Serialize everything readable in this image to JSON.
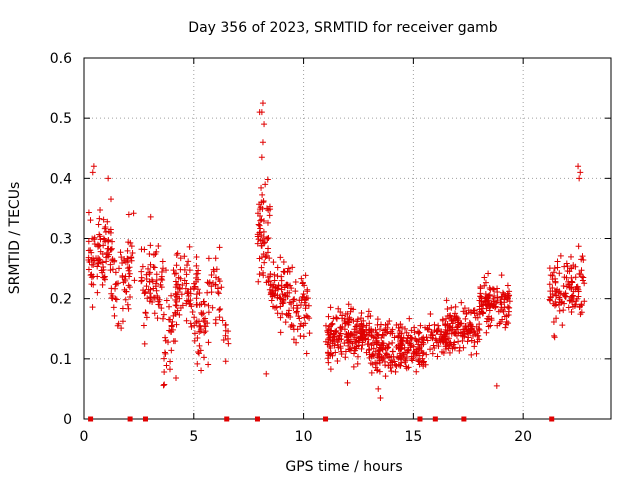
{
  "chart_data": {
    "type": "scatter",
    "title": "Day 356 of 2023, SRMTID for receiver gamb",
    "xlabel": "GPS time / hours",
    "ylabel": "SRMTID / TECUs",
    "xlim": [
      0,
      24
    ],
    "ylim": [
      0,
      0.6
    ],
    "xticks": [
      0,
      5,
      10,
      15,
      20
    ],
    "xtick_labels": [
      "0",
      "5",
      "10",
      "15",
      "20"
    ],
    "yticks": [
      0,
      0.1,
      0.2,
      0.3,
      0.4,
      0.5,
      0.6
    ],
    "ytick_labels": [
      "0",
      "0.1",
      "0.2",
      "0.3",
      "0.4",
      "0.5",
      "0.6"
    ],
    "grid": true,
    "marker": "+",
    "color": "#e00000",
    "segments": [
      {
        "t0": 0.2,
        "t1": 1.3,
        "mean": 0.27,
        "spread": 0.06,
        "n": 90
      },
      {
        "t0": 1.2,
        "t1": 2.1,
        "mean": 0.22,
        "spread": 0.05,
        "n": 50
      },
      {
        "t0": 1.9,
        "t1": 2.3,
        "mean": 0.29,
        "spread": 0.06,
        "n": 15
      },
      {
        "t0": 2.6,
        "t1": 3.6,
        "mean": 0.22,
        "spread": 0.07,
        "n": 70
      },
      {
        "t0": 3.6,
        "t1": 4.2,
        "mean": 0.15,
        "spread": 0.07,
        "n": 35
      },
      {
        "t0": 4.1,
        "t1": 5.2,
        "mean": 0.22,
        "spread": 0.05,
        "n": 75
      },
      {
        "t0": 5.0,
        "t1": 5.7,
        "mean": 0.15,
        "spread": 0.05,
        "n": 40
      },
      {
        "t0": 5.6,
        "t1": 6.3,
        "mean": 0.22,
        "spread": 0.05,
        "n": 30
      },
      {
        "t0": 6.3,
        "t1": 6.6,
        "mean": 0.14,
        "spread": 0.03,
        "n": 10
      },
      {
        "t0": 7.9,
        "t1": 8.5,
        "mean": 0.31,
        "spread": 0.07,
        "n": 60
      },
      {
        "t0": 8.4,
        "t1": 9.4,
        "mean": 0.21,
        "spread": 0.05,
        "n": 70
      },
      {
        "t0": 9.3,
        "t1": 10.3,
        "mean": 0.18,
        "spread": 0.06,
        "n": 60
      },
      {
        "t0": 11.0,
        "t1": 13.0,
        "mean": 0.14,
        "spread": 0.035,
        "n": 190
      },
      {
        "t0": 13.0,
        "t1": 14.5,
        "mean": 0.12,
        "spread": 0.035,
        "n": 140
      },
      {
        "t0": 14.4,
        "t1": 15.6,
        "mean": 0.12,
        "spread": 0.035,
        "n": 100
      },
      {
        "t0": 15.6,
        "t1": 16.5,
        "mean": 0.14,
        "spread": 0.03,
        "n": 60
      },
      {
        "t0": 16.5,
        "t1": 18.0,
        "mean": 0.15,
        "spread": 0.035,
        "n": 130
      },
      {
        "t0": 18.0,
        "t1": 19.4,
        "mean": 0.19,
        "spread": 0.03,
        "n": 120
      },
      {
        "t0": 21.2,
        "t1": 22.0,
        "mean": 0.21,
        "spread": 0.05,
        "n": 60
      },
      {
        "t0": 22.0,
        "t1": 22.8,
        "mean": 0.23,
        "spread": 0.04,
        "n": 60
      }
    ],
    "highlights": [
      {
        "x": 0.4,
        "y": 0.41
      },
      {
        "x": 0.45,
        "y": 0.42
      },
      {
        "x": 1.1,
        "y": 0.4
      },
      {
        "x": 8.0,
        "y": 0.51
      },
      {
        "x": 8.1,
        "y": 0.51
      },
      {
        "x": 8.15,
        "y": 0.525
      },
      {
        "x": 8.2,
        "y": 0.49
      },
      {
        "x": 8.15,
        "y": 0.46
      },
      {
        "x": 8.1,
        "y": 0.435
      },
      {
        "x": 8.25,
        "y": 0.39
      },
      {
        "x": 13.5,
        "y": 0.035
      },
      {
        "x": 13.4,
        "y": 0.05
      },
      {
        "x": 22.5,
        "y": 0.42
      },
      {
        "x": 22.6,
        "y": 0.41
      },
      {
        "x": 22.55,
        "y": 0.4
      },
      {
        "x": 18.8,
        "y": 0.055
      },
      {
        "x": 8.3,
        "y": 0.075
      },
      {
        "x": 12.0,
        "y": 0.06
      }
    ],
    "baseline_markers": [
      0.3,
      2.1,
      2.8,
      6.5,
      7.9,
      11.0,
      15.3,
      16.0,
      17.3,
      21.3
    ]
  }
}
